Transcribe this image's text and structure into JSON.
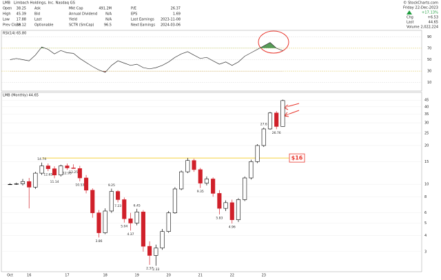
{
  "header": {
    "symbol": "LMB",
    "company": "Limbach Holdings, Inc. Nasdaq GS",
    "quote_columns": [
      [
        [
          "Open",
          "38.25"
        ],
        [
          "High",
          "45.39"
        ],
        [
          "Low",
          "17.88"
        ],
        [
          "Prev Close",
          "38.12"
        ]
      ],
      [
        [
          "Ask"
        ],
        [
          "Bid"
        ],
        [
          "Last"
        ],
        [
          "Optionable"
        ]
      ],
      [
        [
          "Mkt Cap",
          "491.2M"
        ],
        [
          "Annual Dividend",
          "N/A"
        ],
        [
          "Yield",
          "N/A"
        ],
        [
          "SCTR (SmCap)",
          "96.5"
        ]
      ],
      [
        [
          "P/E",
          "26.37"
        ],
        [
          "EPS",
          "1.69"
        ],
        [
          "Last Earnings",
          "2023-11-08"
        ],
        [
          "Next Earnings",
          "2024-03-06"
        ]
      ]
    ],
    "copyright": "© StockCharts.com",
    "date": "Friday 22-Dec-2023",
    "change_pct": "+17.13%",
    "right_rows": [
      [
        "Chg",
        "+6.53"
      ],
      [
        "Last",
        "44.65"
      ],
      [
        "Volume",
        "2,022,224"
      ]
    ]
  },
  "chart_data": [
    {
      "type": "line",
      "title": "RSI(14) 65.80",
      "color": "#333333",
      "upper_fill": "#3a8a3a",
      "lower_fill": "#8b2a2a",
      "upper_level": 70,
      "lower_level": 30,
      "values": [
        50,
        52,
        50,
        48,
        58,
        72,
        68,
        60,
        66,
        62,
        61,
        52,
        45,
        38,
        32,
        28,
        40,
        48,
        44,
        40,
        42,
        36,
        34,
        36,
        40,
        46,
        54,
        60,
        64,
        58,
        52,
        54,
        48,
        42,
        46,
        40,
        46,
        56,
        62,
        68,
        74,
        80,
        70,
        65.8
      ],
      "ylim": [
        0,
        100
      ],
      "yticks": [
        90,
        70,
        50,
        30,
        10
      ]
    },
    {
      "type": "candlestick",
      "title": "LMB (Monthly) 44.65",
      "up_color": "#000000",
      "down_color": "#d0202a",
      "log_scale": true,
      "categories": [
        "Oct",
        null,
        null,
        "16",
        null,
        null,
        null,
        null,
        null,
        "17",
        null,
        null,
        null,
        null,
        null,
        "18",
        null,
        null,
        null,
        null,
        "19",
        null,
        null,
        null,
        null,
        "20",
        null,
        null,
        null,
        null,
        "21",
        null,
        null,
        null,
        null,
        "22",
        null,
        null,
        null,
        null,
        "23",
        null,
        null,
        null
      ],
      "open": [
        10,
        10,
        10.1,
        10.5,
        9.5,
        12.2,
        13.9,
        13.2,
        11.8,
        13.9,
        13.4,
        13.25,
        11.2,
        9.0,
        6.0,
        4.2,
        6.2,
        8.8,
        7.6,
        5.4,
        5.0,
        6.1,
        3.3,
        2.8,
        3.2,
        4.3,
        6.0,
        9.2,
        12.5,
        15.3,
        13.0,
        10.2,
        11.0,
        8.5,
        6.5,
        7.2,
        5.3,
        7.6,
        11.2,
        15.0,
        20.0,
        26.9,
        35.8,
        28.1
      ],
      "high": [
        10.2,
        10.3,
        11,
        11.2,
        12.5,
        14.74,
        14.5,
        13.8,
        14.2,
        14.5,
        14.3,
        13.9,
        11.8,
        9.3,
        6.3,
        6.5,
        9.25,
        9.0,
        7.9,
        6.0,
        6.45,
        6.3,
        3.6,
        3.4,
        4.5,
        6.2,
        9.5,
        12.8,
        16.0,
        15.8,
        13.4,
        11.5,
        11.3,
        9.0,
        7.5,
        7.6,
        7.8,
        11.5,
        15.5,
        20.5,
        27.6,
        36.5,
        37.0,
        45.39
      ],
      "low": [
        9.9,
        9.9,
        9.8,
        6.5,
        9.2,
        11.8,
        12.65,
        11.14,
        11.5,
        12.95,
        13.25,
        10.53,
        8.5,
        5.5,
        3.86,
        4.1,
        6.0,
        7.23,
        5.04,
        4.37,
        4.8,
        3.0,
        2.37,
        2.33,
        3.1,
        4.2,
        5.9,
        9.0,
        12.2,
        12.5,
        9.35,
        9.8,
        8.0,
        5.83,
        6.2,
        4.96,
        5.1,
        7.4,
        10.9,
        14.6,
        19.5,
        26.5,
        26.76,
        28.0
      ],
      "close": [
        10,
        10.1,
        10.5,
        9.5,
        12.2,
        13.9,
        13.2,
        11.8,
        13.9,
        13.4,
        13.25,
        11.2,
        9.0,
        6.0,
        4.2,
        6.2,
        8.8,
        7.6,
        5.4,
        5.0,
        6.1,
        3.3,
        2.8,
        3.2,
        4.3,
        6.0,
        9.2,
        12.5,
        15.3,
        13.0,
        10.2,
        11.0,
        8.5,
        6.5,
        7.2,
        5.3,
        7.6,
        11.2,
        15.0,
        20.0,
        26.9,
        35.8,
        28.1,
        44.65
      ],
      "high_labels": [
        null,
        null,
        null,
        null,
        null,
        "14.74",
        null,
        null,
        null,
        null,
        null,
        null,
        null,
        null,
        null,
        null,
        "9.25",
        null,
        null,
        null,
        "6.45",
        null,
        null,
        null,
        null,
        null,
        null,
        null,
        null,
        null,
        null,
        null,
        null,
        null,
        null,
        null,
        null,
        null,
        null,
        null,
        "27.6",
        null,
        null,
        null
      ],
      "low_labels": [
        null,
        null,
        null,
        null,
        null,
        null,
        "12.65",
        "11.14",
        null,
        "12.95",
        "13.25",
        "10.53",
        null,
        null,
        "3.86",
        null,
        null,
        "7.23",
        "5.04",
        "4.37",
        null,
        null,
        "2.37",
        "2.33",
        null,
        null,
        null,
        null,
        null,
        null,
        "9.35",
        null,
        null,
        "5.83",
        null,
        "4.96",
        null,
        null,
        null,
        null,
        null,
        null,
        "26.76",
        null
      ],
      "annotation": {
        "text": "$16",
        "value": 16,
        "color": "#e8342a",
        "line_color": "#f2c200"
      },
      "ylim": [
        2.2,
        48
      ],
      "yticks": [
        45,
        40,
        35,
        30,
        25,
        20,
        15,
        10,
        8,
        6,
        5,
        4,
        3
      ]
    }
  ]
}
